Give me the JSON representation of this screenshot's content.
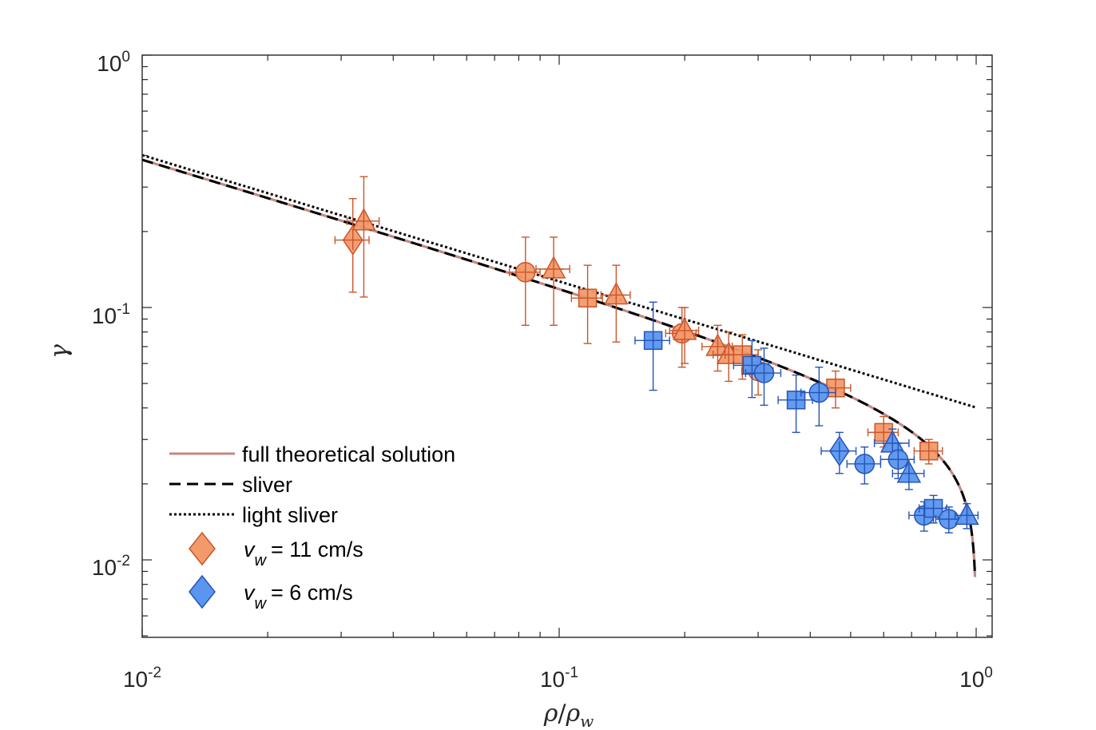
{
  "chart_data": {
    "type": "scatter",
    "x_scale": "log",
    "y_scale": "log",
    "xlabel_main": "ρ",
    "xlabel_sep": "/",
    "xlabel_ref": "ρ",
    "xlabel_ref_sub": "w",
    "ylabel": "γ",
    "xlim": [
      0.01,
      1.15
    ],
    "ylim": [
      0.005,
      1.0
    ],
    "x_ticks": [
      {
        "value": 0.01,
        "base": "10",
        "exp": "-2"
      },
      {
        "value": 0.1,
        "base": "10",
        "exp": "-1"
      },
      {
        "value": 1.0,
        "base": "10",
        "exp": "0"
      }
    ],
    "y_ticks": [
      {
        "value": 0.01,
        "base": "10",
        "exp": "-2"
      },
      {
        "value": 0.1,
        "base": "10",
        "exp": "-1"
      },
      {
        "value": 1.0,
        "base": "10",
        "exp": "0"
      }
    ],
    "curves": [
      {
        "name": "full theoretical solution",
        "legend_label": "full theoretical solution",
        "style": "solid",
        "color": "#c08a86"
      },
      {
        "name": "sliver",
        "legend_label": "sliver",
        "style": "dashed",
        "color": "#000000"
      },
      {
        "name": "light sliver",
        "legend_label": "light sliver",
        "style": "dotted",
        "color": "#000000"
      }
    ],
    "model": {
      "A": 0.0386,
      "exponent": -0.5,
      "cutoff": 1.0
    },
    "series": [
      {
        "name": "v_w = 11 cm/s",
        "symbol": "v",
        "subscript": "w",
        "value_text": "= 11 cm/s",
        "fill": "#f39a6b",
        "stroke": "#c9562a",
        "points": [
          {
            "shape": "diamond",
            "x": 0.032,
            "y": 0.185,
            "xerr": [
              0.029,
              0.035
            ],
            "yerr": [
              0.115,
              0.27
            ]
          },
          {
            "shape": "triangle",
            "x": 0.034,
            "y": 0.22,
            "xerr": [
              0.031,
              0.037
            ],
            "yerr": [
              0.11,
              0.33
            ]
          },
          {
            "shape": "circle",
            "x": 0.083,
            "y": 0.138,
            "xerr": [
              0.076,
              0.09
            ],
            "yerr": [
              0.085,
              0.19
            ]
          },
          {
            "shape": "triangle",
            "x": 0.097,
            "y": 0.142,
            "xerr": [
              0.088,
              0.106
            ],
            "yerr": [
              0.085,
              0.19
            ]
          },
          {
            "shape": "square",
            "x": 0.117,
            "y": 0.109,
            "xerr": [
              0.107,
              0.127
            ],
            "yerr": [
              0.072,
              0.147
            ]
          },
          {
            "shape": "triangle",
            "x": 0.137,
            "y": 0.112,
            "xerr": [
              0.126,
              0.148
            ],
            "yerr": [
              0.073,
              0.147
            ]
          },
          {
            "shape": "circle",
            "x": 0.197,
            "y": 0.079,
            "xerr": [
              0.18,
              0.213
            ],
            "yerr": [
              0.058,
              0.1
            ]
          },
          {
            "shape": "triangle",
            "x": 0.2,
            "y": 0.081,
            "xerr": [
              0.184,
              0.216
            ],
            "yerr": [
              0.06,
              0.1
            ]
          },
          {
            "shape": "triangle",
            "x": 0.24,
            "y": 0.07,
            "xerr": [
              0.22,
              0.26
            ],
            "yerr": [
              0.056,
              0.085
            ]
          },
          {
            "shape": "triangle",
            "x": 0.255,
            "y": 0.065,
            "xerr": [
              0.234,
              0.276
            ],
            "yerr": [
              0.051,
              0.08
            ]
          },
          {
            "shape": "square",
            "x": 0.275,
            "y": 0.065,
            "xerr": [
              0.25,
              0.3
            ],
            "yerr": [
              0.052,
              0.078
            ]
          },
          {
            "shape": "circle",
            "x": 0.3,
            "y": 0.056,
            "xerr": [
              0.274,
              0.326
            ],
            "yerr": [
              0.045,
              0.068
            ]
          },
          {
            "shape": "square",
            "x": 0.46,
            "y": 0.048,
            "xerr": [
              0.42,
              0.5
            ],
            "yerr": [
              0.04,
              0.056
            ]
          },
          {
            "shape": "square",
            "x": 0.6,
            "y": 0.032,
            "xerr": [
              0.55,
              0.65
            ],
            "yerr": [
              0.028,
              0.037
            ]
          },
          {
            "shape": "square",
            "x": 0.77,
            "y": 0.027,
            "xerr": [
              0.71,
              0.83
            ],
            "yerr": [
              0.024,
              0.03
            ]
          }
        ]
      },
      {
        "name": "v_w = 6 cm/s",
        "symbol": "v",
        "subscript": "w",
        "value_text": "= 6 cm/s",
        "fill": "#5a96ee",
        "stroke": "#2554b8",
        "points": [
          {
            "shape": "square",
            "x": 0.168,
            "y": 0.074,
            "xerr": [
              0.152,
              0.184
            ],
            "yerr": [
              0.047,
              0.105
            ]
          },
          {
            "shape": "square",
            "x": 0.29,
            "y": 0.059,
            "xerr": [
              0.262,
              0.318
            ],
            "yerr": [
              0.044,
              0.074
            ]
          },
          {
            "shape": "circle",
            "x": 0.31,
            "y": 0.055,
            "xerr": [
              0.28,
              0.34
            ],
            "yerr": [
              0.041,
              0.069
            ]
          },
          {
            "shape": "square",
            "x": 0.37,
            "y": 0.043,
            "xerr": [
              0.335,
              0.405
            ],
            "yerr": [
              0.032,
              0.054
            ]
          },
          {
            "shape": "circle",
            "x": 0.42,
            "y": 0.046,
            "xerr": [
              0.38,
              0.46
            ],
            "yerr": [
              0.034,
              0.058
            ]
          },
          {
            "shape": "diamond",
            "x": 0.47,
            "y": 0.027,
            "xerr": [
              0.425,
              0.515
            ],
            "yerr": [
              0.022,
              0.032
            ]
          },
          {
            "shape": "circle",
            "x": 0.54,
            "y": 0.024,
            "xerr": [
              0.49,
              0.59
            ],
            "yerr": [
              0.02,
              0.028
            ]
          },
          {
            "shape": "triangle",
            "x": 0.63,
            "y": 0.029,
            "xerr": [
              0.57,
              0.69
            ],
            "yerr": [
              0.025,
              0.033
            ]
          },
          {
            "shape": "circle",
            "x": 0.65,
            "y": 0.025,
            "xerr": [
              0.59,
              0.71
            ],
            "yerr": [
              0.021,
              0.029
            ]
          },
          {
            "shape": "triangle",
            "x": 0.69,
            "y": 0.022,
            "xerr": [
              0.63,
              0.75
            ],
            "yerr": [
              0.019,
              0.025
            ]
          },
          {
            "shape": "circle",
            "x": 0.75,
            "y": 0.015,
            "xerr": [
              0.69,
              0.81
            ],
            "yerr": [
              0.013,
              0.017
            ]
          },
          {
            "shape": "square",
            "x": 0.79,
            "y": 0.016,
            "xerr": [
              0.73,
              0.85
            ],
            "yerr": [
              0.014,
              0.018
            ]
          },
          {
            "shape": "circle",
            "x": 0.86,
            "y": 0.0145,
            "xerr": [
              0.8,
              0.92
            ],
            "yerr": [
              0.0128,
              0.0162
            ]
          },
          {
            "shape": "triangle",
            "x": 0.95,
            "y": 0.015,
            "xerr": [
              0.89,
              1.01
            ],
            "yerr": [
              0.0133,
              0.0167
            ]
          }
        ]
      }
    ]
  }
}
